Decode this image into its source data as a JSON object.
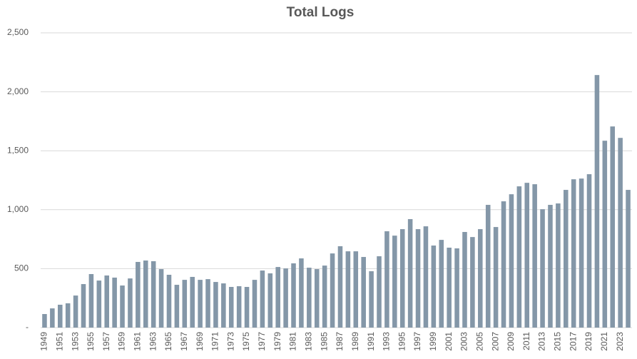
{
  "chart_data": {
    "type": "bar",
    "title": "Total Logs",
    "categories": [
      "1949",
      null,
      "1951",
      null,
      "1953",
      null,
      "1955",
      null,
      "1957",
      null,
      "1959",
      null,
      "1961",
      null,
      "1963",
      null,
      "1965",
      null,
      "1967",
      null,
      "1969",
      null,
      "1971",
      null,
      "1973",
      null,
      "1975",
      null,
      "1977",
      null,
      "1979",
      null,
      "1981",
      null,
      "1983",
      null,
      "1985",
      null,
      "1987",
      null,
      "1989",
      null,
      "1991",
      null,
      "1993",
      null,
      "1995",
      null,
      "1997",
      null,
      "1999",
      null,
      "2001",
      null,
      "2003",
      null,
      "2005",
      null,
      "2007",
      null,
      "2009",
      null,
      "2011",
      null,
      "2013",
      null,
      "2015",
      null,
      "2017",
      null,
      "2019",
      null,
      "2021",
      null,
      "2023",
      null
    ],
    "values": [
      115,
      163,
      194,
      206,
      272,
      369,
      454,
      399,
      442,
      424,
      357,
      417,
      557,
      569,
      563,
      496,
      448,
      363,
      405,
      430,
      405,
      411,
      387,
      375,
      345,
      351,
      345,
      405,
      484,
      460,
      514,
      502,
      545,
      587,
      508,
      496,
      526,
      629,
      690,
      647,
      647,
      599,
      478,
      605,
      817,
      780,
      835,
      920,
      835,
      859,
      696,
      744,
      678,
      672,
      811,
      768,
      835,
      1041,
      853,
      1071,
      1131,
      1198,
      1228,
      1216,
      1004,
      1041,
      1053,
      1168,
      1258,
      1264,
      1301,
      2142,
      1585,
      1706,
      1609,
      1168
    ],
    "color": "#8497a8",
    "ylim": [
      0,
      2500
    ],
    "yticks": [
      {
        "value": 0,
        "label": "-"
      },
      500,
      {
        "value": 1000,
        "label": "1,000"
      },
      {
        "value": 1500,
        "label": "1,500"
      },
      {
        "value": 2000,
        "label": "2,000"
      },
      {
        "value": 2500,
        "label": "2,500"
      }
    ],
    "grid": true
  }
}
